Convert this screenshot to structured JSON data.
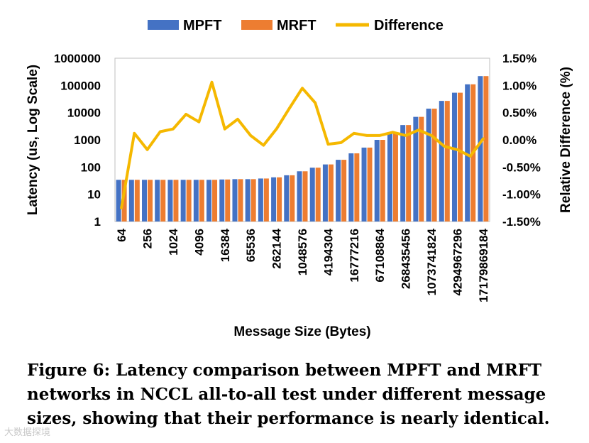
{
  "chart_data": {
    "type": "bar",
    "title": "",
    "xlabel": "Message Size (Bytes)",
    "ylabel": "Latency (us, Log Scale)",
    "y2label": "Relative Difference (%)",
    "y_scale": "log",
    "ylim": [
      1,
      1000000
    ],
    "y_ticks": [
      "1",
      "10",
      "100",
      "1000",
      "10000",
      "100000",
      "1000000"
    ],
    "y2lim": [
      -1.5,
      1.5
    ],
    "y2_ticks": [
      "-1.50%",
      "-1.00%",
      "-0.50%",
      "0.00%",
      "0.50%",
      "1.00%",
      "1.50%"
    ],
    "grid": false,
    "legend_position": "top",
    "categories": [
      "64",
      "128",
      "256",
      "512",
      "1024",
      "2048",
      "4096",
      "8192",
      "16384",
      "32768",
      "65536",
      "131072",
      "262144",
      "524288",
      "1048576",
      "2097152",
      "4194304",
      "8388608",
      "16777216",
      "33554432",
      "67108864",
      "134217728",
      "268435456",
      "536870912",
      "1073741824",
      "2147483648",
      "4294967296",
      "8589934592",
      "17179869184"
    ],
    "visible_x_ticks": [
      "64",
      "256",
      "1024",
      "4096",
      "16384",
      "65536",
      "262144",
      "1048576",
      "4194304",
      "16777216",
      "67108864",
      "268435456",
      "1073741824",
      "4294967296",
      "17179869184"
    ],
    "series": [
      {
        "name": "MPFT",
        "kind": "bar",
        "axis": "left",
        "color": "#4472C4",
        "values": [
          34,
          34,
          34,
          34,
          34,
          34,
          34,
          34,
          35,
          36,
          36,
          38,
          42,
          50,
          70,
          95,
          125,
          185,
          320,
          520,
          1000,
          1800,
          3500,
          7000,
          14000,
          27000,
          54000,
          110000,
          220000
        ]
      },
      {
        "name": "MRFT",
        "kind": "bar",
        "axis": "left",
        "color": "#ED7D31",
        "values": [
          34,
          34,
          34,
          34,
          34,
          34,
          34,
          34,
          35,
          36,
          36,
          38,
          42,
          50,
          70,
          95,
          125,
          185,
          320,
          520,
          1000,
          1800,
          3500,
          7000,
          14000,
          27000,
          54000,
          110000,
          220000
        ]
      },
      {
        "name": "Difference",
        "kind": "line",
        "axis": "right",
        "color": "#F5B800",
        "values": [
          -1.25,
          0.12,
          -0.18,
          0.15,
          0.2,
          0.47,
          0.33,
          1.06,
          0.2,
          0.38,
          0.08,
          -0.1,
          0.2,
          0.58,
          0.95,
          0.68,
          -0.08,
          -0.05,
          0.12,
          0.08,
          0.08,
          0.14,
          0.08,
          0.18,
          0.08,
          -0.12,
          -0.18,
          -0.3,
          0.02
        ]
      }
    ]
  },
  "legend": {
    "mpft": "MPFT",
    "mrft": "MRFT",
    "difference": "Difference"
  },
  "caption": "Figure 6: Latency comparison between MPFT and MRFT networks in NCCL all-to-all test under different message sizes, showing that their performance is nearly identical.",
  "watermark": "大数据探境"
}
